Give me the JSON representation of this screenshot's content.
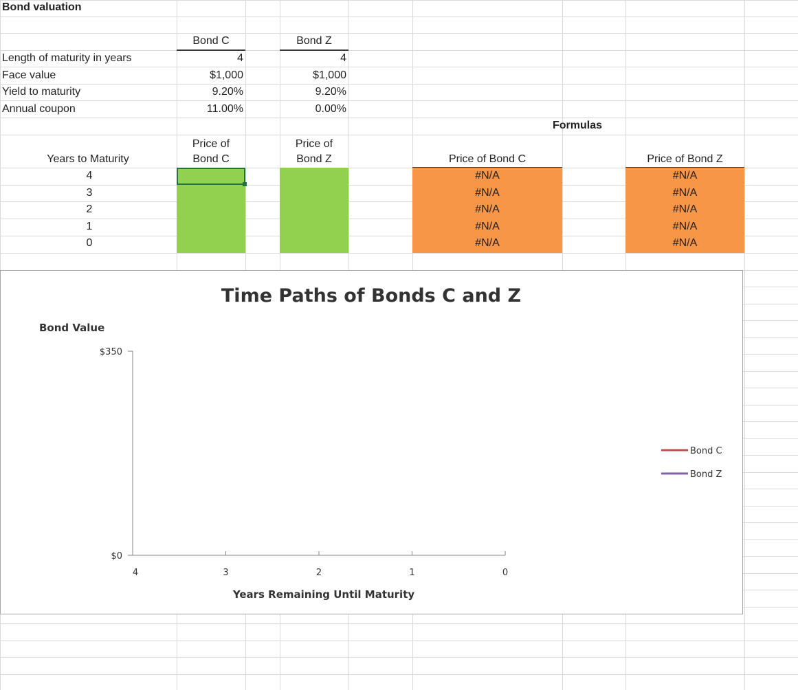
{
  "sheet": {
    "title": "Bond valuation",
    "bond_headers": [
      "Bond C",
      "Bond Z"
    ],
    "inputs": [
      {
        "label": "Length of maturity in years",
        "values": [
          "4",
          "4"
        ]
      },
      {
        "label": "Face value",
        "values": [
          "$1,000",
          "$1,000"
        ]
      },
      {
        "label": "Yield to maturity",
        "values": [
          "9.20%",
          "9.20%"
        ]
      },
      {
        "label": "Annual coupon",
        "values": [
          "11.00%",
          "0.00%"
        ]
      }
    ],
    "formulas_label": "Formulas",
    "years_header": "Years to Maturity",
    "price_headers": [
      [
        "Price of",
        "Bond C"
      ],
      [
        "Price of",
        "Bond Z"
      ]
    ],
    "formula_headers": [
      "Price of Bond C",
      "Price of Bond Z"
    ],
    "years": [
      "4",
      "3",
      "2",
      "1",
      "0"
    ],
    "formula_c": [
      "#N/A",
      "#N/A",
      "#N/A",
      "#N/A",
      "#N/A"
    ],
    "formula_z": [
      "#N/A",
      "#N/A",
      "#N/A",
      "#N/A",
      "#N/A"
    ]
  },
  "chart_data": {
    "type": "line",
    "title": "Time Paths of Bonds C and Z",
    "y_label": "Bond Value",
    "x_label": "Years Remaining Until Maturity",
    "categories": [
      "4",
      "3",
      "2",
      "1",
      "0"
    ],
    "series": [
      {
        "name": "Bond C",
        "color": "#c0504d",
        "values": [
          null,
          null,
          null,
          null,
          null
        ]
      },
      {
        "name": "Bond Z",
        "color": "#8064a2",
        "values": [
          null,
          null,
          null,
          null,
          null
        ]
      }
    ],
    "ylim": [
      0,
      350
    ],
    "yticks": [
      {
        "value": 0,
        "label": "$0"
      },
      {
        "value": 350,
        "label": "$350"
      }
    ],
    "legend": "right"
  }
}
